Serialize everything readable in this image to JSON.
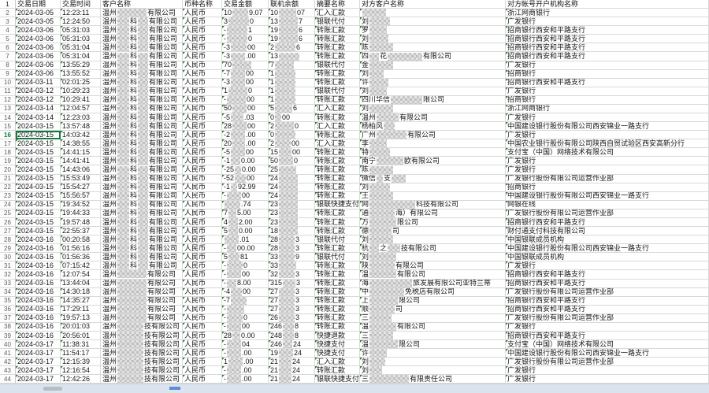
{
  "app": {
    "type": "spreadsheet-transaction-ledger"
  },
  "columns": [
    "交易日期",
    "交易时间",
    "客户名称",
    "币种名称",
    "交易金额",
    "联机余额",
    "摘要名称",
    "对方客户名称",
    "对方帐号开户机构名称"
  ],
  "selected_row": 16,
  "colors": {
    "grid": "#d9d9d9",
    "error_triangle": "#2e7d32",
    "selection": "#107c41",
    "row_number": "#5f5f5f"
  },
  "redaction_note": "numbers inside fragment arrays are widths (px) of pixelated redaction mosaics between visible text fragments",
  "rows": [
    {
      "n": 2,
      "date": "2024-03-05",
      "time": "12:23:11",
      "customer": [
        "温州",
        37,
        "有限公司"
      ],
      "currency": "人民币",
      "amount": [
        "10",
        20,
        "9.07"
      ],
      "balance": [
        "10",
        22,
        "07"
      ],
      "summary": "汇入汇款",
      "counterparty": [
        30
      ],
      "bank": "浙江网商银行"
    },
    {
      "n": 3,
      "date": "2024-03-05",
      "time": "12:24:50",
      "customer": [
        "温州",
        15,
        "科",
        13,
        "有限公司"
      ],
      "currency": "人民币",
      "amount": [
        "3",
        26,
        "0"
      ],
      "balance": [
        "13",
        24,
        "7"
      ],
      "summary": "银联代付",
      "counterparty": [
        "刘",
        26
      ],
      "bank": "广发银行"
    },
    {
      "n": 4,
      "date": "2024-03-06",
      "time": "05:31:03",
      "customer": [
        "温州",
        15,
        "科",
        13,
        "有限公司"
      ],
      "currency": "人民币",
      "amount": [
        "-",
        26,
        "1"
      ],
      "balance": [
        "19",
        24,
        "6"
      ],
      "summary": "转账汇款",
      "counterparty": [
        "罗",
        22
      ],
      "bank": "招商银行西安和平路支行"
    },
    {
      "n": 5,
      "date": "2024-03-06",
      "time": "05:31:03",
      "customer": [
        "温州",
        15,
        "科",
        13,
        "有限公司"
      ],
      "currency": "人民币",
      "amount": [
        "-",
        26,
        "0"
      ],
      "balance": [
        "19",
        24,
        "6"
      ],
      "summary": "转账汇款",
      "counterparty": [
        "刘",
        24
      ],
      "bank": "招商银行西安和平路支行"
    },
    {
      "n": 6,
      "date": "2024-03-06",
      "time": "05:31:04",
      "customer": [
        "温州",
        15,
        "科",
        13,
        "有限公司"
      ],
      "currency": "人民币",
      "amount": [
        "-3",
        20,
        "00"
      ],
      "balance": [
        "2",
        26,
        "6"
      ],
      "summary": "转账汇款",
      "counterparty": [
        "陈",
        30
      ],
      "bank": "招商银行西安和平路支行"
    },
    {
      "n": 7,
      "date": "2024-03-06",
      "time": "05:31:04",
      "customer": [
        "温州",
        15,
        "科",
        13,
        "有限公司"
      ],
      "currency": "人民币",
      "amount": [
        "-3",
        18,
        ".00"
      ],
      "balance": [
        "13",
        26
      ],
      "summary": "转账汇款",
      "counterparty": [
        "四",
        12,
        "花",
        44,
        "有限公司"
      ],
      "bank": "招商银行西安和平路支行"
    },
    {
      "n": 8,
      "date": "2024-03-06",
      "time": "13:55:29",
      "customer": [
        "温州",
        15,
        "科",
        13,
        "有限公司"
      ],
      "currency": "人民币",
      "amount": [
        "70",
        24
      ],
      "balance": [
        "7",
        24
      ],
      "summary": "银联代付",
      "counterparty": [
        "金",
        30
      ],
      "bank": "广发银行"
    },
    {
      "n": 9,
      "date": "2024-03-06",
      "time": "13:55:52",
      "customer": [
        "温州",
        15,
        "科",
        13,
        "有限公司"
      ],
      "currency": "人民币",
      "amount": [
        "-7",
        18,
        "00"
      ],
      "balance": [
        "1",
        26
      ],
      "summary": "转账汇款",
      "counterparty": [
        "刘",
        18
      ],
      "bank": "招商银行"
    },
    {
      "n": 10,
      "date": "2024-03-11",
      "time": "02:01:25",
      "customer": [
        "温州",
        15,
        "科",
        13,
        "有限公司"
      ],
      "currency": "人民币",
      "amount": [
        "-3",
        18,
        "00"
      ],
      "balance": [
        "1",
        26
      ],
      "summary": "转账汇款",
      "counterparty": [
        "许",
        24
      ],
      "bank": "招商银行西安和平路支行"
    },
    {
      "n": 11,
      "date": "2024-03-12",
      "time": "10:29:23",
      "customer": [
        "温州",
        15,
        "科",
        13,
        "有限公司"
      ],
      "currency": "人民币",
      "amount": [
        "1",
        24,
        "0"
      ],
      "balance": [
        "1",
        26
      ],
      "summary": "银联代付",
      "counterparty": [
        "刘",
        22
      ],
      "bank": "广发银行"
    },
    {
      "n": 12,
      "date": "2024-03-12",
      "time": "10:29:41",
      "customer": [
        "温州",
        15,
        "科",
        13,
        "有限公司"
      ],
      "currency": "人民币",
      "amount": [
        "-",
        24,
        "00"
      ],
      "balance": [
        "1",
        26
      ],
      "summary": "转账汇款",
      "counterparty": [
        "四川华信",
        40,
        "限公司"
      ],
      "bank": "招商银行"
    },
    {
      "n": 13,
      "date": "2024-03-14",
      "time": "12:04:57",
      "customer": [
        "温州",
        15,
        "科",
        13,
        "有限公司"
      ],
      "currency": "人民币",
      "amount": [
        "50",
        18,
        "00"
      ],
      "balance": [
        "5",
        22,
        "6"
      ],
      "summary": "汇入汇款",
      "counterparty": [
        "刘",
        30
      ],
      "bank": "浙江网商银行"
    },
    {
      "n": 14,
      "date": "2024-03-14",
      "time": "12:23:03",
      "customer": [
        "温州",
        15,
        "科",
        13,
        "有限公司"
      ],
      "currency": "人民币",
      "amount": [
        "-5",
        16,
        ".03"
      ],
      "balance": [
        "0",
        8,
        "00"
      ],
      "summary": "转账汇款",
      "counterparty": [
        "温州",
        28,
        "有限公司"
      ],
      "bank": "广发银行"
    },
    {
      "n": 15,
      "date": "2024-03-15",
      "time": "13:57:48",
      "customer": [
        "温州",
        15,
        "科",
        13,
        "有限公司"
      ],
      "currency": "人民币",
      "amount": [
        "28",
        18,
        "00"
      ],
      "balance": [
        "2",
        24,
        "0"
      ],
      "summary": "汇入汇款",
      "counterparty": [
        "杨柏风",
        14
      ],
      "bank": "中国建设银行股份有限公司西安锦业一路支行"
    },
    {
      "n": 16,
      "date": "2024-03-15",
      "time": "14:03:42",
      "customer": [
        "温州",
        15,
        "科",
        13,
        "有限公司"
      ],
      "currency": "人民币",
      "amount": [
        "-2",
        18,
        ".00"
      ],
      "balance": [
        "0",
        26
      ],
      "summary": "转账汇款",
      "counterparty": [
        "广州",
        38,
        "有限公司"
      ],
      "bank": "广发银行"
    },
    {
      "n": 17,
      "date": "2024-03-15",
      "time": "14:38:55",
      "customer": [
        "温州",
        15,
        "科",
        13,
        "有限公司"
      ],
      "currency": "人民币",
      "amount": [
        "20",
        16,
        ".00"
      ],
      "balance": [
        "2",
        20,
        "00"
      ],
      "summary": "汇入汇款",
      "counterparty": [
        "李",
        22
      ],
      "bank": "中国农业银行股份有限公司陕西自贸试验区西安高新分行"
    },
    {
      "n": 18,
      "date": "2024-03-15",
      "time": "14:41:15",
      "customer": [
        "温州",
        15,
        "科",
        13,
        "有限公司"
      ],
      "currency": "人民币",
      "amount": [
        "-5",
        18,
        "00"
      ],
      "balance": [
        "15",
        16,
        "00"
      ],
      "summary": "转账汇款",
      "counterparty": [
        "特",
        26
      ],
      "bank": "支付宝（中国）网络技术有限公司"
    },
    {
      "n": 19,
      "date": "2024-03-15",
      "time": "14:41:41",
      "customer": [
        "温州",
        15,
        "科",
        13,
        "有限公司"
      ],
      "currency": "人民币",
      "amount": [
        "-1",
        12,
        "0.00"
      ],
      "balance": [
        "50",
        18,
        "0"
      ],
      "summary": "转账汇款",
      "counterparty": [
        "南宁",
        34,
        "欧有限公司"
      ],
      "bank": "广发银行"
    },
    {
      "n": 20,
      "date": "2024-03-15",
      "time": "14:43:06",
      "customer": [
        "温州",
        15,
        "科",
        13,
        "有限公司"
      ],
      "currency": "人民币",
      "amount": [
        "-25",
        8,
        "0.00"
      ],
      "balance": [
        "25",
        22
      ],
      "summary": "转账汇款",
      "counterparty": [
        "陈",
        30
      ],
      "bank": "广发银行"
    },
    {
      "n": 21,
      "date": "2024-03-15",
      "time": "15:53:49",
      "customer": [
        "温州",
        15,
        "科",
        13,
        "有限公司"
      ],
      "currency": "人民币",
      "amount": [
        "-52",
        14,
        "00"
      ],
      "balance": [
        "24",
        24
      ],
      "summary": "转账汇款",
      "counterparty": [
        "微信",
        8,
        "支",
        18
      ],
      "bank": "广发银行股份有限公司运营作业部"
    },
    {
      "n": 22,
      "date": "2024-03-15",
      "time": "15:54:27",
      "customer": [
        "温州",
        15,
        "科",
        13,
        "有限公司"
      ],
      "currency": "人民币",
      "amount": [
        "-1",
        8,
        "92.99"
      ],
      "balance": [
        "24",
        24
      ],
      "summary": "转账汇款",
      "counterparty": [
        "刘",
        26
      ],
      "bank": "招商银行"
    },
    {
      "n": 23,
      "date": "2024-03-15",
      "time": "15:56:57",
      "customer": [
        "温州",
        15,
        "科",
        13,
        "有限公司"
      ],
      "currency": "人民币",
      "amount": [
        "-",
        18,
        "00"
      ],
      "balance": [
        "24",
        24
      ],
      "summary": "转账汇款",
      "counterparty": [
        "王",
        30
      ],
      "bank": "中国建设银行股份有限公司西安锦业一路支行"
    },
    {
      "n": 24,
      "date": "2024-03-15",
      "time": "19:34:52",
      "customer": [
        "温州",
        15,
        "科",
        13,
        "有限公司"
      ],
      "currency": "人民币",
      "amount": [
        20,
        ".74"
      ],
      "balance": [
        "23",
        24
      ],
      "summary": "银联快捷支付",
      "counterparty": [
        "网",
        58,
        "科技有限公司"
      ],
      "bank": "网银在线"
    },
    {
      "n": 25,
      "date": "2024-03-15",
      "time": "19:44:33",
      "customer": [
        "温州",
        15,
        "科",
        13,
        "有限公司"
      ],
      "currency": "人民币",
      "amount": [
        "7",
        10,
        "5.00"
      ],
      "balance": [
        "23",
        24
      ],
      "summary": "转账汇款",
      "counterparty": [
        "通",
        32,
        "海）有限公司"
      ],
      "bank": "广发银行股份有限公司运营作业部"
    },
    {
      "n": 26,
      "date": "2024-03-15",
      "time": "19:57:48",
      "customer": [
        "温州",
        15,
        "科",
        13,
        "有限公司"
      ],
      "currency": "人民币",
      "amount": [
        "4",
        12,
        "2.00"
      ],
      "balance": [
        "23",
        24
      ],
      "summary": "转账汇款",
      "counterparty": [
        "万",
        34,
        "限公司"
      ],
      "bank": "招商银行西安和平路支行"
    },
    {
      "n": 27,
      "date": "2024-03-15",
      "time": "22:55:37",
      "customer": [
        "温州",
        15,
        "科",
        13,
        "有限公司"
      ],
      "currency": "人民币",
      "amount": [
        "5",
        12,
        "0.00"
      ],
      "balance": [
        "18",
        24
      ],
      "summary": "转账汇款",
      "counterparty": [
        "德",
        28,
        "司"
      ],
      "bank": "财付通支付科技有限公司"
    },
    {
      "n": 28,
      "date": "2024-03-16",
      "time": "00:20:58",
      "customer": [
        "温州",
        15,
        "科",
        13,
        "有限公司"
      ],
      "currency": "人民币",
      "amount": [
        18,
        ".01"
      ],
      "balance": [
        "28",
        20,
        "3"
      ],
      "summary": "银联代付",
      "counterparty": [
        "刘",
        30
      ],
      "bank": "中国银联成员机构"
    },
    {
      "n": 29,
      "date": "2024-03-16",
      "time": "01:56:16",
      "customer": [
        "温州",
        15,
        "科",
        13,
        "有限公司"
      ],
      "currency": "人民币",
      "amount": [
        "-",
        12,
        "00.00"
      ],
      "balance": [
        "28",
        20,
        "3"
      ],
      "summary": "转账汇款",
      "counterparty": [
        "杭",
        12,
        "之",
        16,
        "技有限公司"
      ],
      "bank": "中国建设银行股份有限公司西安锦业一路支行"
    },
    {
      "n": 30,
      "date": "2024-03-16",
      "time": "01:56:36",
      "customer": [
        "温州",
        15,
        "科",
        13,
        "有限公司"
      ],
      "currency": "人民币",
      "amount": [
        "5",
        14,
        "81"
      ],
      "balance": [
        "33",
        20,
        "9"
      ],
      "summary": "银联代付",
      "counterparty": [
        "刘",
        34
      ],
      "bank": "中国银联成员机构"
    },
    {
      "n": 31,
      "date": "2024-03-16",
      "time": "07:15:42",
      "customer": [
        "温州",
        15,
        "科",
        13,
        "有限公司"
      ],
      "currency": "人民币",
      "amount": [
        "-",
        20,
        "0"
      ],
      "balance": [
        "33",
        22
      ],
      "summary": "转账汇款",
      "counterparty": [
        "陕",
        32,
        "有限公司"
      ],
      "bank": "广发银行"
    },
    {
      "n": 32,
      "date": "2024-03-16",
      "time": "12:07:54",
      "customer": [
        "温州",
        37,
        "有限公司"
      ],
      "currency": "人民币",
      "amount": [
        "-",
        18,
        "00"
      ],
      "balance": [
        "32",
        20,
        "3"
      ],
      "summary": "转账汇款",
      "counterparty": [
        "温",
        34,
        "有限公司"
      ],
      "bank": "招商银行西安和平路支行"
    },
    {
      "n": 33,
      "date": "2024-03-16",
      "time": "13:44:04",
      "customer": [
        "温州",
        37,
        "有限公司"
      ],
      "currency": "人民币",
      "amount": [
        "-",
        12,
        "8.00"
      ],
      "balance": [
        "315",
        16,
        "3"
      ],
      "summary": "转账汇款",
      "counterparty": [
        "海",
        54,
        "旅发展有限公司亚特兰蒂"
      ],
      "bank": "招商银行西安和平路支行"
    },
    {
      "n": 34,
      "date": "2024-03-16",
      "time": "14:30:18",
      "customer": [
        "温州",
        37,
        "有限公司"
      ],
      "currency": "人民币",
      "amount": [
        "-4",
        14,
        "00"
      ],
      "balance": [
        "27",
        20,
        "3"
      ],
      "summary": "转账汇款",
      "counterparty": [
        "中",
        44,
        "免税店有限公司"
      ],
      "bank": "广发银行股份有限公司运营作业部"
    },
    {
      "n": 35,
      "date": "2024-03-16",
      "time": "14:35:27",
      "customer": [
        "温州",
        37,
        "有限公司"
      ],
      "currency": "人民币",
      "amount": [
        "-7",
        20
      ],
      "balance": [
        "27",
        20,
        "3"
      ],
      "summary": "转账汇款",
      "counterparty": [
        "上",
        36,
        "限公司"
      ],
      "bank": "招商银行西安和平路支行"
    },
    {
      "n": 36,
      "date": "2024-03-16",
      "time": "17:29:11",
      "customer": [
        "温州",
        37,
        "有限公司"
      ],
      "currency": "人民币",
      "amount": [
        "-",
        22
      ],
      "balance": [
        "27",
        20,
        "3"
      ],
      "summary": "转账汇款",
      "counterparty": [
        "顺",
        32,
        "司"
      ],
      "bank": "招商银行西安和平路支行"
    },
    {
      "n": 37,
      "date": "2024-03-16",
      "time": "19:57:13",
      "customer": [
        "温州",
        37,
        "有限公司"
      ],
      "currency": "人民币",
      "amount": [
        "-",
        20,
        "0"
      ],
      "balance": [
        "26",
        20,
        "3"
      ],
      "summary": "转账汇款",
      "counterparty": [
        "三",
        28
      ],
      "bank": "广发银行股份有限公司运营作业部"
    },
    {
      "n": 38,
      "date": "2024-03-16",
      "time": "20:01:03",
      "customer": [
        "温州",
        33,
        "技有限公司"
      ],
      "currency": "人民币",
      "amount": [
        "-",
        18,
        "00"
      ],
      "balance": [
        "246",
        14,
        "8"
      ],
      "summary": "转账汇款",
      "counterparty": [
        "温",
        34,
        "有限公司"
      ],
      "bank": "广发银行"
    },
    {
      "n": 39,
      "date": "2024-03-16",
      "time": "20:56:01",
      "customer": [
        "温州",
        33,
        "技有限公司"
      ],
      "currency": "人民币",
      "amount": [
        "28",
        10,
        "0.00"
      ],
      "balance": [
        "248",
        14,
        "8"
      ],
      "summary": "快捷退款",
      "counterparty": [
        "三",
        30
      ],
      "bank": "招商银行西安和平路支行"
    },
    {
      "n": 40,
      "date": "2024-03-17",
      "time": "11:38:31",
      "customer": [
        "温州",
        33,
        "技有限公司"
      ],
      "currency": "人民币",
      "amount": [
        "-",
        18,
        "04"
      ],
      "balance": [
        "246",
        12,
        "24"
      ],
      "summary": "快捷支付",
      "counterparty": [
        "温",
        36,
        "限公司"
      ],
      "bank": "支付宝（中国）网络技术有限公司"
    },
    {
      "n": 41,
      "date": "2024-03-17",
      "time": "11:54:17",
      "customer": [
        "温州",
        33,
        "技有限公司"
      ],
      "currency": "人民币",
      "amount": [
        "-",
        18,
        ".00"
      ],
      "balance": [
        "19",
        18,
        "24"
      ],
      "summary": "快捷支付",
      "counterparty": [
        "许",
        22
      ],
      "bank": "中国建设银行股份有限公司西安锦业一路支行"
    },
    {
      "n": 42,
      "date": "2024-03-17",
      "time": "12:15:39",
      "customer": [
        "温州",
        33,
        "技有限公司"
      ],
      "currency": "人民币",
      "amount": [
        "1",
        18,
        ".00"
      ],
      "balance": [
        "21",
        16,
        "24"
      ],
      "summary": "汇入汇款",
      "counterparty": [
        "刘",
        20
      ],
      "bank": "广发银行股份有限公司运营作业部"
    },
    {
      "n": 43,
      "date": "2024-03-17",
      "time": "12:16:54",
      "customer": [
        "温州",
        33,
        "技有限公司"
      ],
      "currency": "人民币",
      "amount": [
        "-",
        18,
        ".00"
      ],
      "balance": [
        "21",
        16,
        "24"
      ],
      "summary": "转账汇款",
      "counterparty": [
        "刘",
        16
      ],
      "bank": "广发银行"
    },
    {
      "n": 44,
      "date": "2024-03-17",
      "time": "12:42:26",
      "customer": [
        "温州",
        33,
        "技有限公司"
      ],
      "currency": "人民币",
      "amount": [
        "-",
        18,
        ".00"
      ],
      "balance": [
        "21",
        16,
        "24"
      ],
      "summary": "银联快捷支付",
      "counterparty": [
        "三",
        50,
        "有限责任公司"
      ],
      "bank": "广发银行"
    }
  ]
}
